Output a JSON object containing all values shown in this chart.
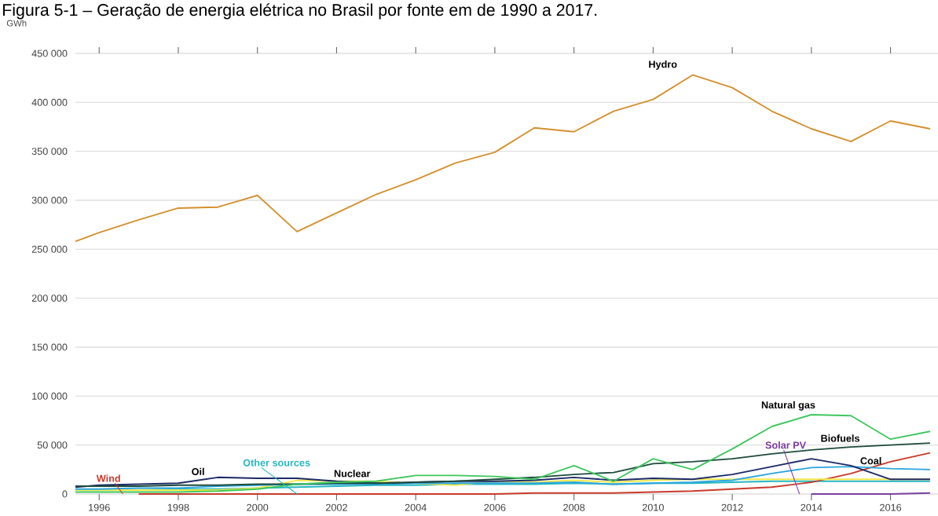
{
  "chart_data": {
    "type": "line",
    "title": "Figura 5-1 – Geração de energia elétrica no Brasil por fonte em de 1990 a 2017.",
    "ylabel": "GWh",
    "x": [
      1995.4,
      1996,
      1997,
      1998,
      1999,
      2000,
      2001,
      2002,
      2003,
      2004,
      2005,
      2006,
      2007,
      2008,
      2009,
      2010,
      2011,
      2012,
      2013,
      2014,
      2015,
      2016,
      2017
    ],
    "xlim": [
      1995.4,
      2017.2
    ],
    "ylim": [
      0,
      450000
    ],
    "xticks": [
      1996,
      1998,
      2000,
      2002,
      2004,
      2006,
      2008,
      2010,
      2012,
      2014,
      2016
    ],
    "yticks": [
      {
        "value": 0,
        "label": "0"
      },
      {
        "value": 50000,
        "label": "50 000"
      },
      {
        "value": 100000,
        "label": "100 000"
      },
      {
        "value": 150000,
        "label": "150 000"
      },
      {
        "value": 200000,
        "label": "200 000"
      },
      {
        "value": 250000,
        "label": "250 000"
      },
      {
        "value": 300000,
        "label": "300 000"
      },
      {
        "value": 350000,
        "label": "350 000"
      },
      {
        "value": 400000,
        "label": "400 000"
      },
      {
        "value": 450000,
        "label": "450 000"
      }
    ],
    "grid": "y",
    "legend": false,
    "marker": "none",
    "line_style": "solid",
    "series": [
      {
        "name": "Hydro",
        "color": "#d4902e",
        "values": [
          258000,
          267000,
          280000,
          292000,
          293000,
          305000,
          268000,
          287000,
          306000,
          321000,
          338000,
          349000,
          374000,
          370000,
          391000,
          403000,
          428000,
          415000,
          391000,
          373000,
          360000,
          381000,
          373000
        ]
      },
      {
        "name": "Natural gas",
        "color": "#3ec75e",
        "values": [
          2000,
          2000,
          2000,
          2000,
          3000,
          5000,
          10000,
          12000,
          13000,
          19000,
          19000,
          18000,
          15000,
          29000,
          13000,
          36000,
          25000,
          46000,
          69000,
          81000,
          80000,
          56000,
          64000
        ]
      },
      {
        "name": "Biofuels",
        "color": "#1d4a3c",
        "values": [
          8000,
          8000,
          8000,
          9000,
          9000,
          10000,
          10000,
          11000,
          11000,
          12000,
          13000,
          15000,
          17000,
          20000,
          22000,
          31000,
          33000,
          36000,
          41000,
          45000,
          48000,
          50000,
          52000
        ]
      },
      {
        "name": "Oil",
        "color": "#1c2a66",
        "values": [
          7000,
          9000,
          10000,
          11000,
          17000,
          16000,
          16000,
          13000,
          11000,
          12000,
          13000,
          13000,
          14000,
          17000,
          14000,
          16000,
          15000,
          20000,
          28000,
          36000,
          29000,
          15000,
          15000
        ]
      },
      {
        "name": "Coal",
        "color": "#2aa6df",
        "values": [
          5000,
          5000,
          6000,
          6000,
          8000,
          9000,
          10000,
          10000,
          10000,
          11000,
          11000,
          11000,
          11000,
          12000,
          10000,
          11000,
          12000,
          14000,
          21000,
          27000,
          28000,
          26000,
          25000
        ]
      },
      {
        "name": "Nuclear",
        "color": "#f2e84a",
        "values": [
          4000,
          4000,
          4000,
          4000,
          4000,
          6000,
          14000,
          13000,
          13000,
          11000,
          9000,
          13000,
          12000,
          14000,
          12000,
          14000,
          15000,
          15000,
          15000,
          15000,
          15000,
          15000,
          15000
        ]
      },
      {
        "name": "Wind",
        "color": "#c83a2a",
        "values": [
          null,
          null,
          0,
          0,
          0,
          0,
          0,
          0,
          0,
          0,
          0,
          0,
          1000,
          1000,
          1000,
          2000,
          3000,
          5000,
          7000,
          12000,
          21000,
          33000,
          42000
        ]
      },
      {
        "name": "Solar PV",
        "color": "#7b3fa0",
        "values": [
          null,
          null,
          null,
          null,
          null,
          null,
          null,
          null,
          null,
          null,
          null,
          null,
          null,
          null,
          null,
          null,
          null,
          null,
          null,
          0,
          0,
          0,
          1000
        ]
      },
      {
        "name": "Other sources",
        "color": "#26b8c0",
        "values": [
          4000,
          4000,
          4000,
          5000,
          5000,
          6000,
          7000,
          8000,
          9000,
          9000,
          10000,
          10000,
          10000,
          11000,
          10000,
          11000,
          11000,
          12000,
          13000,
          13000,
          13000,
          13000,
          13000
        ]
      }
    ]
  }
}
